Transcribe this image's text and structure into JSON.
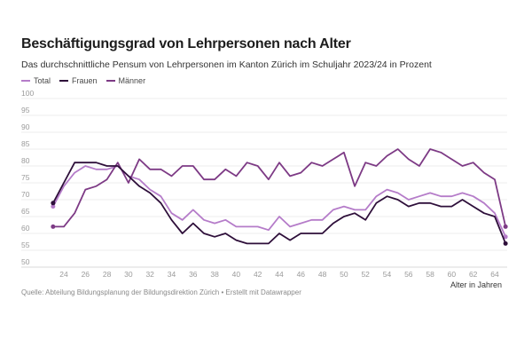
{
  "chart_data": {
    "type": "line",
    "title": "Beschäftigungsgrad von Lehrpersonen nach Alter",
    "subtitle": "Das durchschnittliche Pensum von Lehrpersonen im Kanton Zürich im Schuljahr 2023/24 in Prozent",
    "xlabel": "Alter in Jahren",
    "ylabel": "",
    "xlim": [
      23,
      65
    ],
    "ylim": [
      50,
      100
    ],
    "grid": true,
    "legend_position": "top-left",
    "x_ticks": [
      "24",
      "26",
      "28",
      "30",
      "32",
      "34",
      "36",
      "38",
      "40",
      "42",
      "44",
      "46",
      "48",
      "50",
      "52",
      "54",
      "56",
      "58",
      "60",
      "62",
      "64"
    ],
    "y_ticks": [
      "100",
      "95",
      "90",
      "85",
      "80",
      "75",
      "70",
      "65",
      "60",
      "55",
      "50"
    ],
    "x": [
      23,
      24,
      25,
      26,
      27,
      28,
      29,
      30,
      31,
      32,
      33,
      34,
      35,
      36,
      37,
      38,
      39,
      40,
      41,
      42,
      43,
      44,
      45,
      46,
      47,
      48,
      49,
      50,
      51,
      52,
      53,
      54,
      55,
      56,
      57,
      58,
      59,
      60,
      61,
      62,
      63,
      64,
      65
    ],
    "series": [
      {
        "name": "Total",
        "color": "#b57cc9",
        "values": [
          68,
          74,
          78,
          80,
          79,
          79,
          80,
          77,
          76,
          73,
          71,
          66,
          64,
          67,
          64,
          63,
          64,
          62,
          62,
          62,
          61,
          65,
          62,
          63,
          64,
          64,
          67,
          68,
          67,
          67,
          71,
          73,
          72,
          70,
          71,
          72,
          71,
          71,
          72,
          71,
          69,
          66,
          59
        ]
      },
      {
        "name": "Frauen",
        "color": "#2e0f3a",
        "values": [
          69,
          75,
          81,
          81,
          81,
          80,
          80,
          77,
          74,
          72,
          69,
          64,
          60,
          63,
          60,
          59,
          60,
          58,
          57,
          57,
          57,
          60,
          58,
          60,
          60,
          60,
          63,
          65,
          66,
          64,
          69,
          71,
          70,
          68,
          69,
          69,
          68,
          68,
          70,
          68,
          66,
          65,
          57
        ]
      },
      {
        "name": "Männer",
        "color": "#7d3a85",
        "values": [
          62,
          62,
          66,
          73,
          74,
          76,
          81,
          75,
          82,
          79,
          79,
          77,
          80,
          80,
          76,
          76,
          79,
          77,
          81,
          80,
          76,
          81,
          77,
          78,
          81,
          80,
          82,
          84,
          74,
          81,
          80,
          83,
          85,
          82,
          80,
          85,
          84,
          82,
          80,
          81,
          78,
          76,
          62
        ]
      }
    ]
  },
  "legend": [
    {
      "label": "Total",
      "color": "#b57cc9"
    },
    {
      "label": "Frauen",
      "color": "#2e0f3a"
    },
    {
      "label": "Männer",
      "color": "#7d3a85"
    }
  ],
  "footer": "Quelle: Abteilung Bildungsplanung der Bildungsdirektion Zürich • Erstellt mit Datawrapper"
}
